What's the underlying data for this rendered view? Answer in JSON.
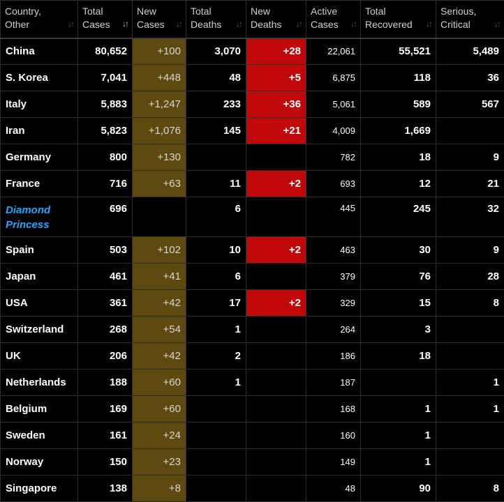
{
  "colors": {
    "new_cases_bg": "#5e4a0f",
    "new_deaths_bg": "#c0080b",
    "link": "#1ea7ff",
    "background": "#000000"
  },
  "sort_icon": "sort-arrows-icon",
  "headers": [
    "Country,\nOther",
    "Total\nCases",
    "New\nCases",
    "Total\nDeaths",
    "New\nDeaths",
    "Active\nCases",
    "Total\nRecovered",
    "Serious,\nCritical"
  ],
  "sort_glyph": "↓↑",
  "rows": [
    {
      "country": "China",
      "total_cases": "80,652",
      "new_cases": "+100",
      "total_deaths": "3,070",
      "new_deaths": "+28",
      "active_cases": "22,061",
      "total_recovered": "55,521",
      "serious_critical": "5,489"
    },
    {
      "country": "S. Korea",
      "total_cases": "7,041",
      "new_cases": "+448",
      "total_deaths": "48",
      "new_deaths": "+5",
      "active_cases": "6,875",
      "total_recovered": "118",
      "serious_critical": "36"
    },
    {
      "country": "Italy",
      "total_cases": "5,883",
      "new_cases": "+1,247",
      "total_deaths": "233",
      "new_deaths": "+36",
      "active_cases": "5,061",
      "total_recovered": "589",
      "serious_critical": "567"
    },
    {
      "country": "Iran",
      "total_cases": "5,823",
      "new_cases": "+1,076",
      "total_deaths": "145",
      "new_deaths": "+21",
      "active_cases": "4,009",
      "total_recovered": "1,669",
      "serious_critical": ""
    },
    {
      "country": "Germany",
      "total_cases": "800",
      "new_cases": "+130",
      "total_deaths": "",
      "new_deaths": "",
      "active_cases": "782",
      "total_recovered": "18",
      "serious_critical": "9"
    },
    {
      "country": "France",
      "total_cases": "716",
      "new_cases": "+63",
      "total_deaths": "11",
      "new_deaths": "+2",
      "active_cases": "693",
      "total_recovered": "12",
      "serious_critical": "21"
    },
    {
      "country": "Diamond\nPrincess",
      "link": true,
      "total_cases": "696",
      "new_cases": "",
      "total_deaths": "6",
      "new_deaths": "",
      "active_cases": "445",
      "total_recovered": "245",
      "serious_critical": "32"
    },
    {
      "country": "Spain",
      "total_cases": "503",
      "new_cases": "+102",
      "total_deaths": "10",
      "new_deaths": "+2",
      "active_cases": "463",
      "total_recovered": "30",
      "serious_critical": "9"
    },
    {
      "country": "Japan",
      "total_cases": "461",
      "new_cases": "+41",
      "total_deaths": "6",
      "new_deaths": "",
      "active_cases": "379",
      "total_recovered": "76",
      "serious_critical": "28"
    },
    {
      "country": "USA",
      "total_cases": "361",
      "new_cases": "+42",
      "total_deaths": "17",
      "new_deaths": "+2",
      "active_cases": "329",
      "total_recovered": "15",
      "serious_critical": "8"
    },
    {
      "country": "Switzerland",
      "total_cases": "268",
      "new_cases": "+54",
      "total_deaths": "1",
      "new_deaths": "",
      "active_cases": "264",
      "total_recovered": "3",
      "serious_critical": ""
    },
    {
      "country": "UK",
      "total_cases": "206",
      "new_cases": "+42",
      "total_deaths": "2",
      "new_deaths": "",
      "active_cases": "186",
      "total_recovered": "18",
      "serious_critical": ""
    },
    {
      "country": "Netherlands",
      "total_cases": "188",
      "new_cases": "+60",
      "total_deaths": "1",
      "new_deaths": "",
      "active_cases": "187",
      "total_recovered": "",
      "serious_critical": "1"
    },
    {
      "country": "Belgium",
      "total_cases": "169",
      "new_cases": "+60",
      "total_deaths": "",
      "new_deaths": "",
      "active_cases": "168",
      "total_recovered": "1",
      "serious_critical": "1"
    },
    {
      "country": "Sweden",
      "total_cases": "161",
      "new_cases": "+24",
      "total_deaths": "",
      "new_deaths": "",
      "active_cases": "160",
      "total_recovered": "1",
      "serious_critical": ""
    },
    {
      "country": "Norway",
      "total_cases": "150",
      "new_cases": "+23",
      "total_deaths": "",
      "new_deaths": "",
      "active_cases": "149",
      "total_recovered": "1",
      "serious_critical": ""
    },
    {
      "country": "Singapore",
      "total_cases": "138",
      "new_cases": "+8",
      "total_deaths": "",
      "new_deaths": "",
      "active_cases": "48",
      "total_recovered": "90",
      "serious_critical": "8"
    }
  ]
}
